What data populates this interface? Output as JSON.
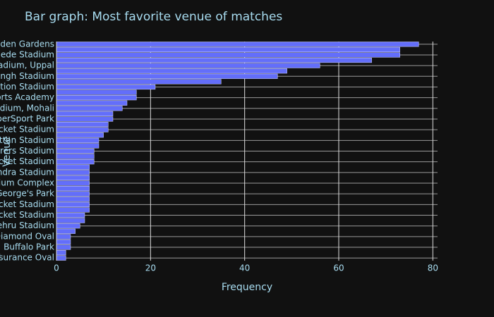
{
  "chart_data": {
    "type": "barh",
    "title": "Bar graph: Most favorite venue of matches",
    "xlabel": "Frequency",
    "ylabel": "Venue",
    "categories": [
      "Eden Gardens",
      null,
      "Wankhede Stadium",
      null,
      "Rajiv Gandhi International Stadium, Uppal",
      null,
      "Sawai Mansingh Stadium",
      null,
      "Maharashtra Cricket Association Stadium",
      null,
      "Dr DY Patil Sports Academy",
      null,
      "Punjab Cricket Association Stadium, Mohali",
      null,
      "SuperSport Park",
      null,
      "Dr. Y.S. Rajasekhara Reddy ACA-VDCA Cricket Stadium",
      null,
      "Shaheed Veer Narayan Singh Kattan Stadium",
      null,
      "New Wanderers Stadium",
      null,
      "Holkar Cricket Stadium",
      null,
      "Punjab Cricket Association IS Bindra Stadium",
      null,
      "JSCA International Stadium Complex",
      null,
      "St George's Park",
      null,
      "Sharjah Cricket Stadium",
      null,
      "Dubai International Cricket Stadium",
      null,
      "Nehru Stadium",
      null,
      "De Beers Diamond Oval",
      null,
      "Buffalo Park",
      null,
      "OUTsurance Oval"
    ],
    "values": [
      77,
      73,
      73,
      67,
      56,
      49,
      47,
      35,
      21,
      17,
      17,
      15,
      14,
      12,
      12,
      11,
      11,
      10,
      9,
      9,
      8,
      8,
      8,
      7,
      7,
      7,
      7,
      7,
      7,
      7,
      7,
      7,
      6,
      6,
      5,
      4,
      3,
      3,
      3,
      2,
      2
    ],
    "color": "#636efa",
    "xlim": [
      0,
      81
    ],
    "xticks": [
      0,
      20,
      40,
      60,
      80
    ],
    "grid": true
  }
}
